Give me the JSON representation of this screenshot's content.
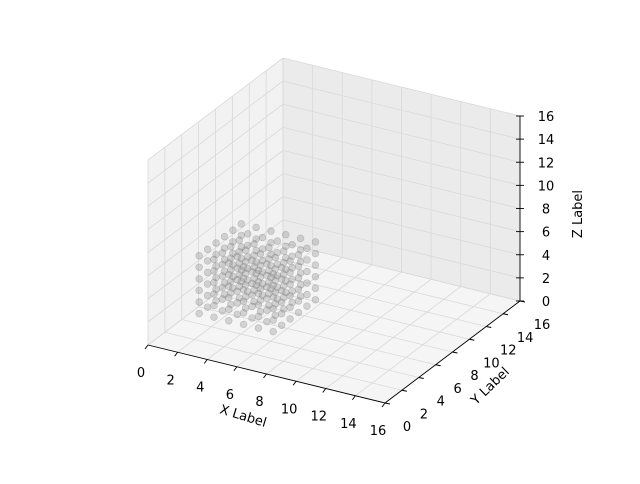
{
  "chart_data": {
    "type": "scatter",
    "projection": "3d",
    "title": "",
    "xlabel": "X Label",
    "ylabel": "Y Label",
    "zlabel": "Z Label",
    "xlim": [
      0,
      16
    ],
    "ylim": [
      0,
      16
    ],
    "zlim": [
      0,
      16
    ],
    "xticks": [
      "0",
      "2",
      "4",
      "6",
      "8",
      "10",
      "12",
      "14",
      "16"
    ],
    "yticks": [
      "0",
      "2",
      "4",
      "6",
      "8",
      "10",
      "12",
      "14",
      "16"
    ],
    "zticks": [
      "0",
      "2",
      "4",
      "6",
      "8",
      "10",
      "12",
      "14",
      "16"
    ],
    "grid": true,
    "marker_color": "#808080",
    "marker_alpha": 0.3,
    "series": [
      {
        "description": "regular 6x6x6 lattice of points",
        "x_values": [
          0,
          1,
          2,
          3,
          4,
          5
        ],
        "y_values": [
          0,
          1,
          2,
          3,
          4,
          5
        ],
        "z_values": [
          0,
          1,
          2,
          3,
          4,
          5
        ]
      }
    ]
  }
}
